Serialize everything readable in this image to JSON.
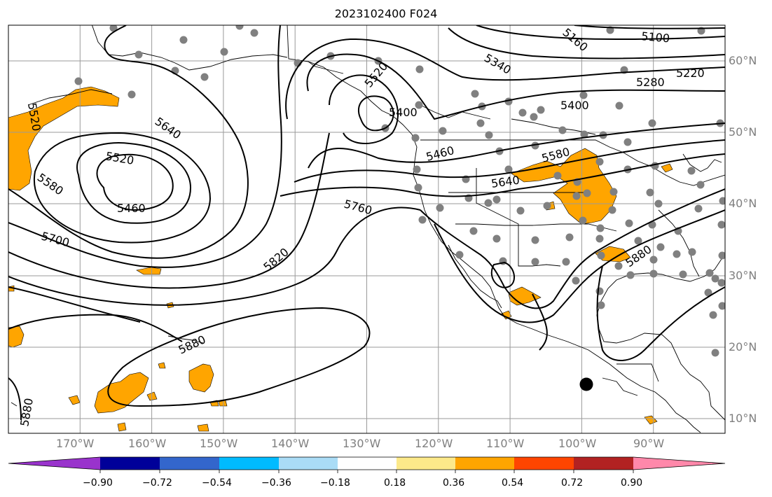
{
  "figure": {
    "title": "2023102400 F024"
  },
  "map": {
    "projection": "equirectangular",
    "lon_range": [
      -180,
      -80
    ],
    "lat_range": [
      8,
      65
    ],
    "gridlines": true,
    "lon_labels": [
      "170°W",
      "160°W",
      "150°W",
      "140°W",
      "130°W",
      "120°W",
      "110°W",
      "100°W",
      "90°W"
    ],
    "lat_labels": [
      "60°N",
      "50°N",
      "40°N",
      "30°N",
      "20°N",
      "10°N"
    ],
    "contour_labels": [
      "5520",
      "5640",
      "5520",
      "5580",
      "5460",
      "5700",
      "5520",
      "5400",
      "5460",
      "5760",
      "5820",
      "5880",
      "5880",
      "5340",
      "5580",
      "5640",
      "5400",
      "5220",
      "5280",
      "5100",
      "5160",
      "5880"
    ],
    "station_marker_color": "#808080",
    "storm_marker_color": "#000000"
  },
  "colorbar": {
    "colors": [
      "#9933cc",
      "#000099",
      "#3366cc",
      "#00bbff",
      "#aadcf6",
      "#ffffff",
      "#fce98a",
      "#ffa500",
      "#ff4500",
      "#b22222",
      "#ff88aa",
      "#ff88aa"
    ],
    "tick_labels": [
      "−0.90",
      "−0.72",
      "−0.54",
      "−0.36",
      "−0.18",
      "0.18",
      "0.36",
      "0.54",
      "0.72",
      "0.90"
    ],
    "extend": "both"
  },
  "chart_data": {
    "type": "contour",
    "field": "geopotential height contours with shaded anomaly",
    "levels_shown": [
      5100,
      5160,
      5220,
      5280,
      5340,
      5400,
      5460,
      5520,
      5580,
      5640,
      5700,
      5760,
      5820,
      5880
    ],
    "shading_levels": [
      -0.9,
      -0.72,
      -0.54,
      -0.36,
      -0.18,
      0.18,
      0.36,
      0.54,
      0.72,
      0.9
    ],
    "features": [
      {
        "kind": "low",
        "center_label": "5460",
        "center_lon": -164,
        "center_lat": 43
      },
      {
        "kind": "low",
        "center_label": "5400",
        "center_lon": -127,
        "center_lat": 52
      },
      {
        "kind": "high",
        "center_label": "5880",
        "center_lon": -155,
        "center_lat": 22
      }
    ]
  }
}
